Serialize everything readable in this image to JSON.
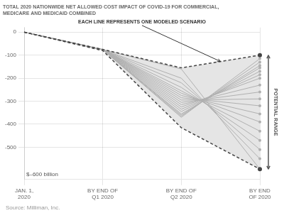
{
  "chart_data": {
    "type": "line",
    "title": [
      "TOTAL 2020 NATIONWIDE NET ALLOWED COST IMPACT OF COVID-19 FOR COMMERCIAL,",
      "MEDICARE AND MEDICAID COMBINED"
    ],
    "categories": [
      "JAN. 1,\n2020",
      "BY END OF\nQ1 2020",
      "BY END OF\nQ2 2020",
      "BY END\nOF 2020"
    ],
    "series": [
      {
        "color": "#444444",
        "line_style": "dashed",
        "marker": "circle",
        "values": [
          0,
          -75,
          -155,
          -100
        ]
      },
      {
        "color": "#444444",
        "line_style": "dashed",
        "marker": "circle",
        "values": [
          0,
          -80,
          -415,
          -595
        ]
      },
      {
        "color": "#b0b0b0",
        "line_style": "solid",
        "marker": "circle",
        "values": [
          0,
          -76,
          -160,
          -595
        ]
      },
      {
        "color": "#b0b0b0",
        "line_style": "solid",
        "marker": "circle",
        "values": [
          0,
          -76,
          -200,
          -550
        ]
      },
      {
        "color": "#b0b0b0",
        "line_style": "solid",
        "marker": "circle",
        "values": [
          0,
          -76,
          -220,
          -510
        ]
      },
      {
        "color": "#b0b0b0",
        "line_style": "solid",
        "marker": "circle",
        "values": [
          0,
          -76,
          -240,
          -470
        ]
      },
      {
        "color": "#b0b0b0",
        "line_style": "solid",
        "marker": "circle",
        "values": [
          0,
          -76,
          -255,
          -430
        ]
      },
      {
        "color": "#b0b0b0",
        "line_style": "solid",
        "marker": "circle",
        "values": [
          0,
          -76,
          -265,
          -390
        ]
      },
      {
        "color": "#b0b0b0",
        "line_style": "solid",
        "marker": "circle",
        "values": [
          0,
          -76,
          -275,
          -355
        ]
      },
      {
        "color": "#b0b0b0",
        "line_style": "solid",
        "marker": "circle",
        "values": [
          0,
          -76,
          -285,
          -320
        ]
      },
      {
        "color": "#b0b0b0",
        "line_style": "solid",
        "marker": "circle",
        "values": [
          0,
          -76,
          -295,
          -290
        ]
      },
      {
        "color": "#b0b0b0",
        "line_style": "solid",
        "marker": "circle",
        "values": [
          0,
          -76,
          -305,
          -260
        ]
      },
      {
        "color": "#b0b0b0",
        "line_style": "solid",
        "marker": "circle",
        "values": [
          0,
          -76,
          -315,
          -230
        ]
      },
      {
        "color": "#b0b0b0",
        "line_style": "solid",
        "marker": "circle",
        "values": [
          0,
          -76,
          -325,
          -200
        ]
      },
      {
        "color": "#b0b0b0",
        "line_style": "solid",
        "marker": "circle",
        "values": [
          0,
          -76,
          -335,
          -185
        ]
      },
      {
        "color": "#b0b0b0",
        "line_style": "solid",
        "marker": "circle",
        "values": [
          0,
          -76,
          -345,
          -170
        ]
      },
      {
        "color": "#b0b0b0",
        "line_style": "solid",
        "marker": "circle",
        "values": [
          0,
          -76,
          -355,
          -155
        ]
      },
      {
        "color": "#b0b0b0",
        "line_style": "solid",
        "marker": "circle",
        "values": [
          0,
          -76,
          -360,
          -145
        ]
      },
      {
        "color": "#b0b0b0",
        "line_style": "solid",
        "marker": "circle",
        "values": [
          0,
          -76,
          -365,
          -130
        ]
      },
      {
        "color": "#b0b0b0",
        "line_style": "solid",
        "marker": "circle",
        "values": [
          0,
          -76,
          -370,
          -115
        ]
      }
    ],
    "fill_color": "#e5e5e5",
    "ylim": [
      -640,
      20
    ],
    "yticks": [
      0,
      -100,
      -200,
      -300,
      -400,
      -500
    ],
    "grid": true,
    "ylabel": "$–600 billion",
    "annotations": [
      "EACH LINE REPRESENTS ONE MODELED SCENARIO",
      "POTENTIAL RANGE"
    ],
    "source": "Source: Milliman, Inc."
  }
}
